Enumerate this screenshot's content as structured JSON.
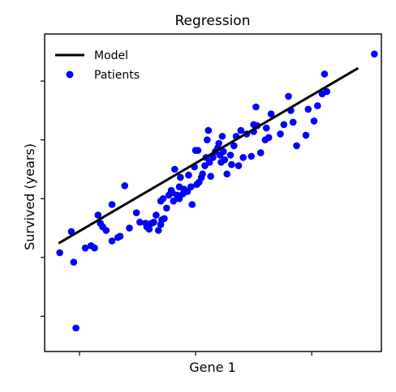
{
  "chart_data": {
    "type": "scatter",
    "title": "Regression",
    "xlabel": "Gene 1",
    "ylabel": "Survived (years)",
    "xlim": [
      -0.3,
      2.6
    ],
    "ylim": [
      -0.3,
      2.4
    ],
    "x_ticks": [
      0,
      1,
      2
    ],
    "y_ticks": [
      0,
      0.5,
      1,
      1.5,
      2
    ],
    "tick_labels_shown": false,
    "grid": false,
    "legend": {
      "placement": "top-left"
    },
    "series": [
      {
        "name": "Model",
        "kind": "line",
        "color": "#000000",
        "points": [
          [
            -0.18,
            0.62
          ],
          [
            2.4,
            2.11
          ]
        ]
      },
      {
        "name": "Patients",
        "kind": "scatter",
        "color": "#0000ff",
        "points": [
          [
            -0.17,
            0.54
          ],
          [
            -0.03,
            -0.1
          ],
          [
            -0.05,
            0.46
          ],
          [
            -0.07,
            0.72
          ],
          [
            0.05,
            0.58
          ],
          [
            0.1,
            0.6
          ],
          [
            0.13,
            0.58
          ],
          [
            0.16,
            0.86
          ],
          [
            0.18,
            0.79
          ],
          [
            0.2,
            0.76
          ],
          [
            0.23,
            0.73
          ],
          [
            0.28,
            0.64
          ],
          [
            0.28,
            0.95
          ],
          [
            0.33,
            0.67
          ],
          [
            0.35,
            0.68
          ],
          [
            0.39,
            1.11
          ],
          [
            0.43,
            0.75
          ],
          [
            0.49,
            0.88
          ],
          [
            0.52,
            0.8
          ],
          [
            0.57,
            0.79
          ],
          [
            0.58,
            0.76
          ],
          [
            0.6,
            0.74
          ],
          [
            0.62,
            0.79
          ],
          [
            0.64,
            0.8
          ],
          [
            0.66,
            0.86
          ],
          [
            0.68,
            0.73
          ],
          [
            0.7,
            0.78
          ],
          [
            0.71,
            0.82
          ],
          [
            0.7,
            0.98
          ],
          [
            0.72,
            1.0
          ],
          [
            0.73,
            0.83
          ],
          [
            0.75,
            0.92
          ],
          [
            0.77,
            1.03
          ],
          [
            0.8,
            1.05
          ],
          [
            0.81,
            0.98
          ],
          [
            0.79,
            1.07
          ],
          [
            0.82,
            1.25
          ],
          [
            0.84,
            1.03
          ],
          [
            0.86,
            1.0
          ],
          [
            0.86,
            1.1
          ],
          [
            0.87,
            1.18
          ],
          [
            0.89,
            1.04
          ],
          [
            0.9,
            1.08
          ],
          [
            0.93,
            1.06
          ],
          [
            0.94,
            1.2
          ],
          [
            0.96,
            1.1
          ],
          [
            0.97,
            0.95
          ],
          [
            0.99,
            1.27
          ],
          [
            1.0,
            1.41
          ],
          [
            1.01,
            1.12
          ],
          [
            1.02,
            1.41
          ],
          [
            1.03,
            1.14
          ],
          [
            1.05,
            1.18
          ],
          [
            1.06,
            1.21
          ],
          [
            1.08,
            1.28
          ],
          [
            1.09,
            1.35
          ],
          [
            1.1,
            1.5
          ],
          [
            1.11,
            1.58
          ],
          [
            1.12,
            1.31
          ],
          [
            1.13,
            1.19
          ],
          [
            1.15,
            1.35
          ],
          [
            1.17,
            1.4
          ],
          [
            1.19,
            1.43
          ],
          [
            1.2,
            1.47
          ],
          [
            1.21,
            1.37
          ],
          [
            1.22,
            1.31
          ],
          [
            1.23,
            1.53
          ],
          [
            1.24,
            1.4
          ],
          [
            1.25,
            1.33
          ],
          [
            1.27,
            1.21
          ],
          [
            1.3,
            1.37
          ],
          [
            1.31,
            1.29
          ],
          [
            1.33,
            1.45
          ],
          [
            1.35,
            1.53
          ],
          [
            1.37,
            1.28
          ],
          [
            1.39,
            1.58
          ],
          [
            1.41,
            1.35
          ],
          [
            1.44,
            1.55
          ],
          [
            1.48,
            1.36
          ],
          [
            1.5,
            1.57
          ],
          [
            1.5,
            1.63
          ],
          [
            1.52,
            1.78
          ],
          [
            1.53,
            1.62
          ],
          [
            1.56,
            1.39
          ],
          [
            1.6,
            1.5
          ],
          [
            1.61,
            1.6
          ],
          [
            1.63,
            1.52
          ],
          [
            1.65,
            1.72
          ],
          [
            1.73,
            1.55
          ],
          [
            1.76,
            1.63
          ],
          [
            1.8,
            1.87
          ],
          [
            1.82,
            1.75
          ],
          [
            1.84,
            1.65
          ],
          [
            1.87,
            1.45
          ],
          [
            1.95,
            1.54
          ],
          [
            1.97,
            1.76
          ],
          [
            2.02,
            1.66
          ],
          [
            2.05,
            1.79
          ],
          [
            2.09,
            1.89
          ],
          [
            2.11,
            2.06
          ],
          [
            2.13,
            1.91
          ],
          [
            2.54,
            2.23
          ]
        ]
      }
    ]
  }
}
